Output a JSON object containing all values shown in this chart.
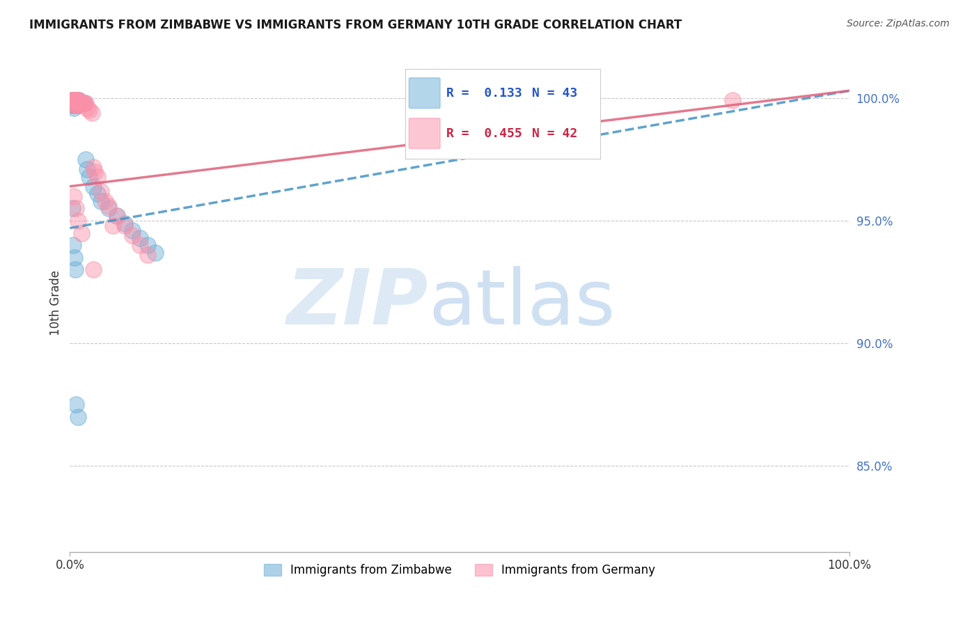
{
  "title": "IMMIGRANTS FROM ZIMBABWE VS IMMIGRANTS FROM GERMANY 10TH GRADE CORRELATION CHART",
  "source": "Source: ZipAtlas.com",
  "ylabel": "10th Grade",
  "y_tick_labels": [
    "85.0%",
    "90.0%",
    "95.0%",
    "100.0%"
  ],
  "y_tick_values": [
    0.85,
    0.9,
    0.95,
    1.0
  ],
  "x_min": 0.0,
  "x_max": 1.0,
  "y_min": 0.815,
  "y_max": 1.018,
  "legend_zimbabwe": "Immigrants from Zimbabwe",
  "legend_germany": "Immigrants from Germany",
  "R_zimbabwe": 0.133,
  "N_zimbabwe": 43,
  "R_germany": 0.455,
  "N_germany": 42,
  "color_zimbabwe": "#6baed6",
  "color_germany": "#fc8fa8",
  "zim_trendline_x0": 0.0,
  "zim_trendline_y0": 0.947,
  "zim_trendline_x1": 1.0,
  "zim_trendline_y1": 1.003,
  "ger_trendline_x0": 0.0,
  "ger_trendline_y0": 0.964,
  "ger_trendline_x1": 1.0,
  "ger_trendline_y1": 1.003,
  "zim_x": [
    0.002,
    0.003,
    0.003,
    0.004,
    0.004,
    0.005,
    0.005,
    0.005,
    0.006,
    0.006,
    0.007,
    0.007,
    0.008,
    0.008,
    0.009,
    0.009,
    0.01,
    0.01,
    0.011,
    0.012,
    0.013,
    0.015,
    0.016,
    0.018,
    0.02,
    0.022,
    0.025,
    0.03,
    0.035,
    0.04,
    0.05,
    0.06,
    0.07,
    0.08,
    0.09,
    0.1,
    0.11,
    0.003,
    0.004,
    0.006,
    0.007,
    0.008,
    0.01
  ],
  "zim_y": [
    0.999,
    0.999,
    0.997,
    0.999,
    0.997,
    0.999,
    0.998,
    0.996,
    0.999,
    0.997,
    0.999,
    0.997,
    0.999,
    0.997,
    0.999,
    0.997,
    0.999,
    0.997,
    0.999,
    0.998,
    0.998,
    0.998,
    0.998,
    0.998,
    0.975,
    0.971,
    0.968,
    0.964,
    0.961,
    0.958,
    0.955,
    0.952,
    0.949,
    0.946,
    0.943,
    0.94,
    0.937,
    0.955,
    0.94,
    0.935,
    0.93,
    0.875,
    0.87
  ],
  "ger_x": [
    0.002,
    0.003,
    0.004,
    0.005,
    0.006,
    0.006,
    0.007,
    0.007,
    0.008,
    0.008,
    0.009,
    0.01,
    0.01,
    0.011,
    0.012,
    0.013,
    0.014,
    0.015,
    0.016,
    0.018,
    0.02,
    0.022,
    0.025,
    0.028,
    0.03,
    0.032,
    0.035,
    0.04,
    0.045,
    0.05,
    0.06,
    0.07,
    0.08,
    0.09,
    0.1,
    0.005,
    0.008,
    0.01,
    0.015,
    0.03,
    0.85,
    0.055
  ],
  "ger_y": [
    0.999,
    0.999,
    0.999,
    0.999,
    0.999,
    0.997,
    0.999,
    0.997,
    0.999,
    0.997,
    0.999,
    0.999,
    0.997,
    0.999,
    0.998,
    0.998,
    0.998,
    0.998,
    0.998,
    0.998,
    0.998,
    0.996,
    0.995,
    0.994,
    0.972,
    0.97,
    0.968,
    0.962,
    0.958,
    0.956,
    0.952,
    0.948,
    0.944,
    0.94,
    0.936,
    0.96,
    0.955,
    0.95,
    0.945,
    0.93,
    0.999,
    0.948
  ]
}
